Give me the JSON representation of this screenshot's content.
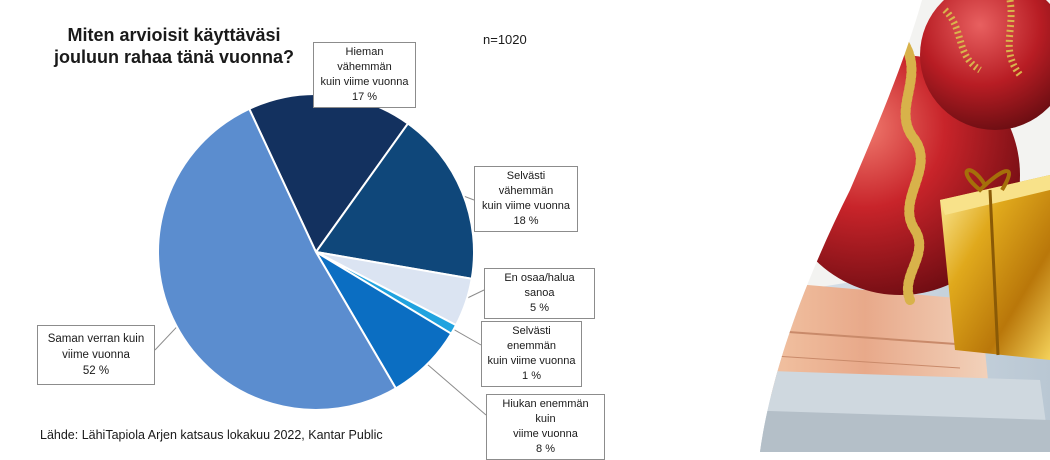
{
  "header": {
    "title_lines": [
      "Miten arvioisit käyttäväsi",
      "jouluun rahaa tänä vuonna?"
    ],
    "sample_size": "n=1020"
  },
  "footer": {
    "source": "Lähde: LähiTapiola Arjen katsaus lokakuu 2022, Kantar Public"
  },
  "chart_data": {
    "type": "pie",
    "title": "Miten arvioisit käyttäväsi jouluun rahaa tänä vuonna?",
    "unit": "%",
    "slices": [
      {
        "label_lines": [
          "Hieman vähemmän",
          "kuin viime vuonna"
        ],
        "value": 17,
        "value_label": "17 %",
        "color": "#13315f"
      },
      {
        "label_lines": [
          "Selvästi vähemmän",
          "kuin viime vuonna"
        ],
        "value": 18,
        "value_label": "18 %",
        "color": "#0f477a"
      },
      {
        "label_lines": [
          "En osaa/halua sanoa"
        ],
        "value": 5,
        "value_label": "5 %",
        "color": "#dbe4f2"
      },
      {
        "label_lines": [
          "Selvästi enemmän",
          "kuin viime vuonna"
        ],
        "value": 1,
        "value_label": "1 %",
        "color": "#21a3df"
      },
      {
        "label_lines": [
          "Hiukan enemmän kuin",
          "viime vuonna"
        ],
        "value": 8,
        "value_label": "8 %",
        "color": "#0b6ec2"
      },
      {
        "label_lines": [
          "Saman verran kuin",
          "viime vuonna"
        ],
        "value": 52,
        "value_label": "52 %",
        "color": "#5b8dcf"
      }
    ]
  },
  "decor": {
    "photo_description": "christmas-ornaments-and-euro-banknotes"
  }
}
